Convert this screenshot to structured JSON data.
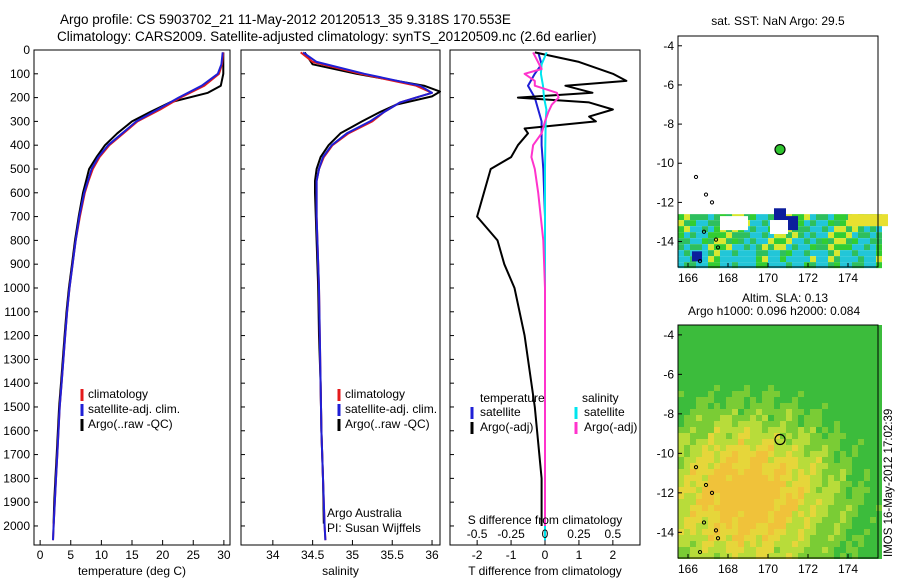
{
  "header": {
    "line1": "Argo profile: CS 5903702_21 11-May-2012 20120513_35 9.318S 170.553E",
    "line2": "Climatology: CARS2009. Satellite-adjusted climatology: synTS_20120509.nc (2.6d earlier)"
  },
  "colors": {
    "climatology": "#e41a1c",
    "satellite": "#1f1fd6",
    "argo": "#000000",
    "sal_satellite": "#00e5ee",
    "sal_argo": "#ff33cc"
  },
  "chart_data": [
    {
      "type": "line",
      "id": "temperature",
      "xlabel": "temperature (deg C)",
      "ylabel": "",
      "xlim": [
        -1,
        31
      ],
      "ylim": [
        2080,
        0
      ],
      "xticks": [
        0,
        5,
        10,
        15,
        20,
        25,
        30
      ],
      "yticks": [
        0,
        100,
        200,
        300,
        400,
        500,
        600,
        700,
        800,
        900,
        1000,
        1100,
        1200,
        1300,
        1400,
        1500,
        1600,
        1700,
        1800,
        1900,
        2000
      ],
      "legend": [
        "climatology",
        "satellite-adj. clim.",
        "Argo(..raw -QC)"
      ],
      "series": [
        {
          "name": "climatology",
          "color": "#e41a1c",
          "depth": [
            10,
            60,
            100,
            150,
            200,
            250,
            300,
            350,
            400,
            450,
            500,
            550,
            600,
            700,
            800,
            900,
            1000,
            1100,
            1200,
            1300,
            1400,
            1500,
            1600,
            1700,
            1800,
            1900,
            2000,
            2060
          ],
          "values": [
            29.9,
            29.7,
            29.2,
            26.8,
            22.9,
            19.6,
            15.9,
            13.6,
            11.3,
            9.7,
            8.6,
            7.9,
            7.3,
            6.5,
            5.8,
            5.3,
            4.8,
            4.4,
            4.1,
            3.8,
            3.5,
            3.2,
            3.0,
            2.8,
            2.6,
            2.4,
            2.2,
            2.1
          ]
        },
        {
          "name": "satellite-adj. clim.",
          "color": "#1f1fd6",
          "depth": [
            10,
            60,
            100,
            150,
            200,
            250,
            300,
            350,
            400,
            450,
            500,
            550,
            600,
            700,
            800,
            900,
            1000,
            1100,
            1200,
            1300,
            1400,
            1500,
            1600,
            1700,
            1800,
            1900,
            2000,
            2060
          ],
          "values": [
            29.8,
            29.6,
            29.0,
            26.4,
            22.6,
            19.2,
            15.7,
            13.4,
            11.1,
            9.5,
            8.4,
            7.8,
            7.2,
            6.4,
            5.8,
            5.3,
            4.8,
            4.4,
            4.1,
            3.8,
            3.5,
            3.2,
            3.0,
            2.8,
            2.6,
            2.4,
            2.2,
            2.1
          ]
        },
        {
          "name": "Argo(..raw -QC)",
          "color": "#000000",
          "depth": [
            10,
            100,
            150,
            180,
            220,
            260,
            300,
            350,
            400,
            450,
            500,
            550,
            600,
            700,
            800,
            900,
            1000,
            1100,
            1200,
            1300,
            1400,
            1500,
            1600,
            1700,
            1800,
            1900,
            1990
          ],
          "values": [
            29.9,
            29.9,
            29.5,
            27.4,
            21.2,
            18.0,
            15.0,
            12.6,
            10.6,
            9.2,
            8.0,
            7.5,
            7.0,
            6.3,
            5.7,
            5.2,
            4.7,
            4.3,
            4.0,
            3.7,
            3.4,
            3.1,
            2.9,
            2.7,
            2.5,
            2.3,
            2.2
          ]
        }
      ]
    },
    {
      "type": "line",
      "id": "salinity",
      "xlabel": "salinity",
      "ylabel": "",
      "xlim": [
        33.6,
        36.1
      ],
      "ylim": [
        2080,
        0
      ],
      "xticks": [
        34,
        34.5,
        35,
        35.5,
        36
      ],
      "legend": [
        "climatology",
        "satellite-adj. clim.",
        "Argo(..raw -QC)"
      ],
      "annotation": [
        "Argo Australia",
        "PI: Susan Wijffels"
      ],
      "series": [
        {
          "name": "climatology",
          "color": "#e41a1c",
          "depth": [
            10,
            50,
            100,
            150,
            180,
            200,
            220,
            260,
            300,
            350,
            400,
            450,
            500,
            550,
            600,
            700,
            800,
            900,
            1000,
            1200,
            1400,
            1600,
            1800,
            2000,
            2060
          ],
          "values": [
            34.35,
            34.5,
            35.1,
            35.8,
            36.0,
            35.8,
            35.6,
            35.4,
            35.25,
            34.95,
            34.75,
            34.64,
            34.58,
            34.55,
            34.55,
            34.55,
            34.56,
            34.57,
            34.58,
            34.59,
            34.6,
            34.61,
            34.63,
            34.65,
            34.66
          ]
        },
        {
          "name": "satellite-adj. clim.",
          "color": "#1f1fd6",
          "depth": [
            10,
            50,
            100,
            150,
            180,
            200,
            220,
            260,
            300,
            350,
            400,
            450,
            500,
            550,
            600,
            700,
            800,
            900,
            1000,
            1200,
            1400,
            1600,
            1800,
            2000,
            2060
          ],
          "values": [
            34.38,
            34.55,
            35.15,
            35.85,
            36.0,
            35.8,
            35.6,
            35.4,
            35.22,
            34.93,
            34.74,
            34.63,
            34.58,
            34.55,
            34.55,
            34.55,
            34.56,
            34.57,
            34.58,
            34.59,
            34.6,
            34.61,
            34.63,
            34.65,
            34.66
          ]
        },
        {
          "name": "Argo(..raw -QC)",
          "color": "#000000",
          "depth": [
            10,
            60,
            100,
            150,
            175,
            195,
            230,
            260,
            300,
            350,
            400,
            450,
            500,
            550,
            600,
            700,
            800,
            900,
            1000,
            1200,
            1400,
            1600,
            1800,
            1990
          ],
          "values": [
            34.4,
            34.5,
            35.05,
            35.9,
            36.1,
            36.0,
            35.55,
            35.35,
            35.12,
            34.85,
            34.7,
            34.6,
            34.55,
            34.53,
            34.53,
            34.54,
            34.55,
            34.56,
            34.57,
            34.58,
            34.6,
            34.61,
            34.63,
            34.64
          ]
        }
      ]
    },
    {
      "type": "line",
      "id": "difference",
      "xlabel": "T difference from climatology",
      "xlabel2": "S difference from climatology",
      "xlim": [
        -2.8,
        2.8
      ],
      "ylim": [
        2080,
        0
      ],
      "xticks": [
        -2,
        -1,
        0,
        1,
        2
      ],
      "xticks2": [
        -0.5,
        -0.25,
        0,
        0.25,
        0.5
      ],
      "xticks2_labels": [
        "-0.5",
        "-0.25",
        "0",
        "0.25",
        "0.5"
      ],
      "legend_t_title": "temperature",
      "legend_s_title": "salinity",
      "legend": [
        "satellite",
        "Argo(-adj)",
        "satellite",
        "Argo(-adj)"
      ],
      "series": [
        {
          "name": "T satellite",
          "color": "#1f1fd6",
          "depth": [
            10,
            60,
            100,
            150,
            200,
            250,
            300,
            400,
            500,
            700,
            1000,
            1500,
            2000,
            2060
          ],
          "values": [
            -0.2,
            -0.1,
            -0.3,
            -0.5,
            -0.3,
            -0.2,
            -0.1,
            -0.1,
            -0.05,
            0.0,
            0.0,
            0.0,
            0.0,
            0.0
          ]
        },
        {
          "name": "T Argo(-adj)",
          "color": "#000000",
          "depth": [
            10,
            50,
            100,
            130,
            150,
            180,
            200,
            220,
            250,
            280,
            300,
            330,
            350,
            400,
            450,
            500,
            600,
            700,
            800,
            900,
            1000,
            1200,
            1500,
            1800,
            2000
          ],
          "values": [
            -0.3,
            1.0,
            2.0,
            2.4,
            0.6,
            1.4,
            -0.8,
            1.3,
            2.0,
            1.3,
            1.5,
            -0.6,
            -0.5,
            -0.8,
            -1.0,
            -1.6,
            -1.8,
            -2.0,
            -1.4,
            -1.2,
            -0.9,
            -0.6,
            -0.3,
            -0.1,
            -0.1
          ]
        },
        {
          "name": "S satellite",
          "color": "#00e5ee",
          "depth": [
            10,
            60,
            100,
            150,
            200,
            250,
            300,
            400,
            500,
            700,
            1000,
            1500,
            2000,
            2060
          ],
          "values": [
            0.05,
            -0.1,
            -0.12,
            -0.06,
            -0.03,
            0.04,
            0.02,
            0.01,
            0.0,
            0.0,
            0.0,
            0.0,
            0.0,
            0.0
          ]
        },
        {
          "name": "S Argo(-adj)",
          "color": "#ff33cc",
          "depth": [
            10,
            80,
            100,
            130,
            150,
            180,
            200,
            230,
            260,
            300,
            350,
            400,
            450,
            500,
            600,
            800,
            1000,
            1500,
            2000
          ],
          "values": [
            -0.35,
            -0.1,
            -0.6,
            -0.3,
            -0.3,
            0.35,
            0.4,
            0.2,
            0.1,
            0.0,
            -0.1,
            -0.35,
            -0.4,
            -0.3,
            -0.2,
            -0.05,
            0.0,
            0.0,
            0.0
          ]
        }
      ]
    },
    {
      "type": "heatmap",
      "id": "sst-map",
      "title": "sat. SST: NaN Argo: 29.5",
      "xlim": [
        165.5,
        175.5
      ],
      "ylim": [
        -15.3,
        -3.5
      ],
      "xticks": [
        166,
        168,
        170,
        172,
        174
      ],
      "yticks": [
        -4,
        -6,
        -8,
        -10,
        -12,
        -14
      ],
      "xtick_labels": [
        "166",
        "168",
        "170",
        "172",
        "174"
      ],
      "ytick_labels": [
        "-4",
        "-6",
        "-8",
        "-10",
        "-12",
        "-14"
      ],
      "marker": {
        "lon": 170.6,
        "lat": -9.3,
        "color": "#2fc42f"
      }
    },
    {
      "type": "heatmap",
      "id": "sla-map",
      "title": "Altim. SLA: 0.13",
      "subtitle": "Argo h1000: 0.096 h2000: 0.084",
      "xlim": [
        165.5,
        175.5
      ],
      "ylim": [
        -15.3,
        -3.5
      ],
      "xticks": [
        166,
        168,
        170,
        172,
        174
      ],
      "yticks": [
        -4,
        -6,
        -8,
        -10,
        -12,
        -14
      ],
      "xtick_labels": [
        "166",
        "168",
        "170",
        "172",
        "174"
      ],
      "ytick_labels": [
        "-4",
        "-6",
        "-8",
        "-10",
        "-12",
        "-14"
      ],
      "marker": {
        "lon": 170.6,
        "lat": -9.3,
        "color": "none"
      }
    }
  ],
  "side_label": "IMOS 16-May-2012 17:02:39"
}
